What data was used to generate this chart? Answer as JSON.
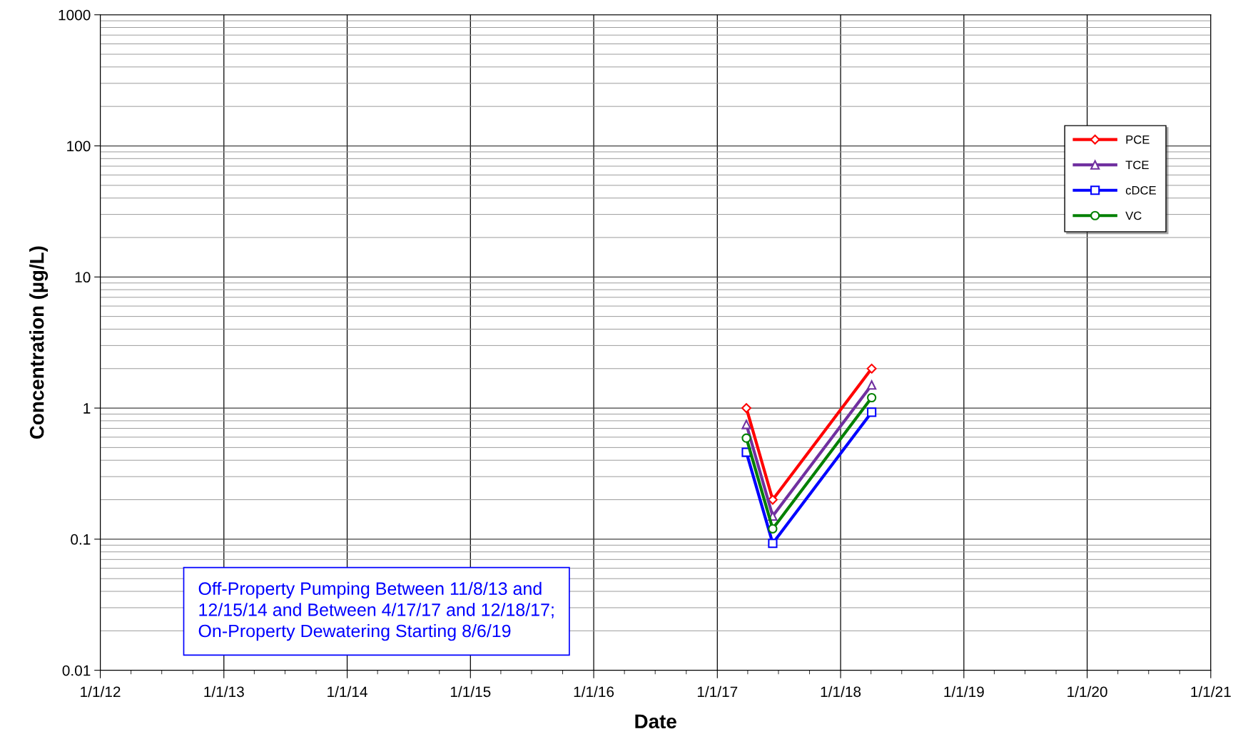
{
  "chart_data": {
    "type": "line",
    "xlabel": "Date",
    "ylabel": "Concentration (µg/L)",
    "x": [
      "2017-03-28",
      "2017-06-14",
      "2018-04-03"
    ],
    "series": [
      {
        "name": "PCE",
        "color": "#ff0000",
        "marker": "diamond",
        "values": [
          1.0,
          0.2,
          2.0
        ]
      },
      {
        "name": "TCE",
        "color": "#7030a0",
        "marker": "triangle",
        "values": [
          0.75,
          0.15,
          1.5
        ]
      },
      {
        "name": "cDCE",
        "color": "#0000ff",
        "marker": "square",
        "values": [
          0.46,
          0.093,
          0.93
        ]
      },
      {
        "name": "VC",
        "color": "#008000",
        "marker": "circle",
        "values": [
          0.59,
          0.12,
          1.2
        ]
      }
    ],
    "log": "y",
    "ylim": [
      0.01,
      1000
    ],
    "yticks": [
      0.01,
      0.1,
      1,
      10,
      100,
      1000
    ],
    "xlim": [
      "2012-01-01",
      "2021-01-01"
    ],
    "xticks": [
      {
        "value": "2012-01-01",
        "label": "1/1/12"
      },
      {
        "value": "2013-01-01",
        "label": "1/1/13"
      },
      {
        "value": "2014-01-01",
        "label": "1/1/14"
      },
      {
        "value": "2015-01-01",
        "label": "1/1/15"
      },
      {
        "value": "2016-01-01",
        "label": "1/1/16"
      },
      {
        "value": "2017-01-01",
        "label": "1/1/17"
      },
      {
        "value": "2018-01-01",
        "label": "1/1/18"
      },
      {
        "value": "2019-01-01",
        "label": "1/1/19"
      },
      {
        "value": "2020-01-01",
        "label": "1/1/20"
      },
      {
        "value": "2021-01-01",
        "label": "1/1/21"
      }
    ],
    "grid": true,
    "legend": "top right",
    "line_style": "solid",
    "annotations": [
      "Off-Property Pumping Between 11/8/13 and 12/15/14 and Between 4/17/17 and 12/18/17; On-Property Dewatering Starting 8/6/19"
    ]
  }
}
